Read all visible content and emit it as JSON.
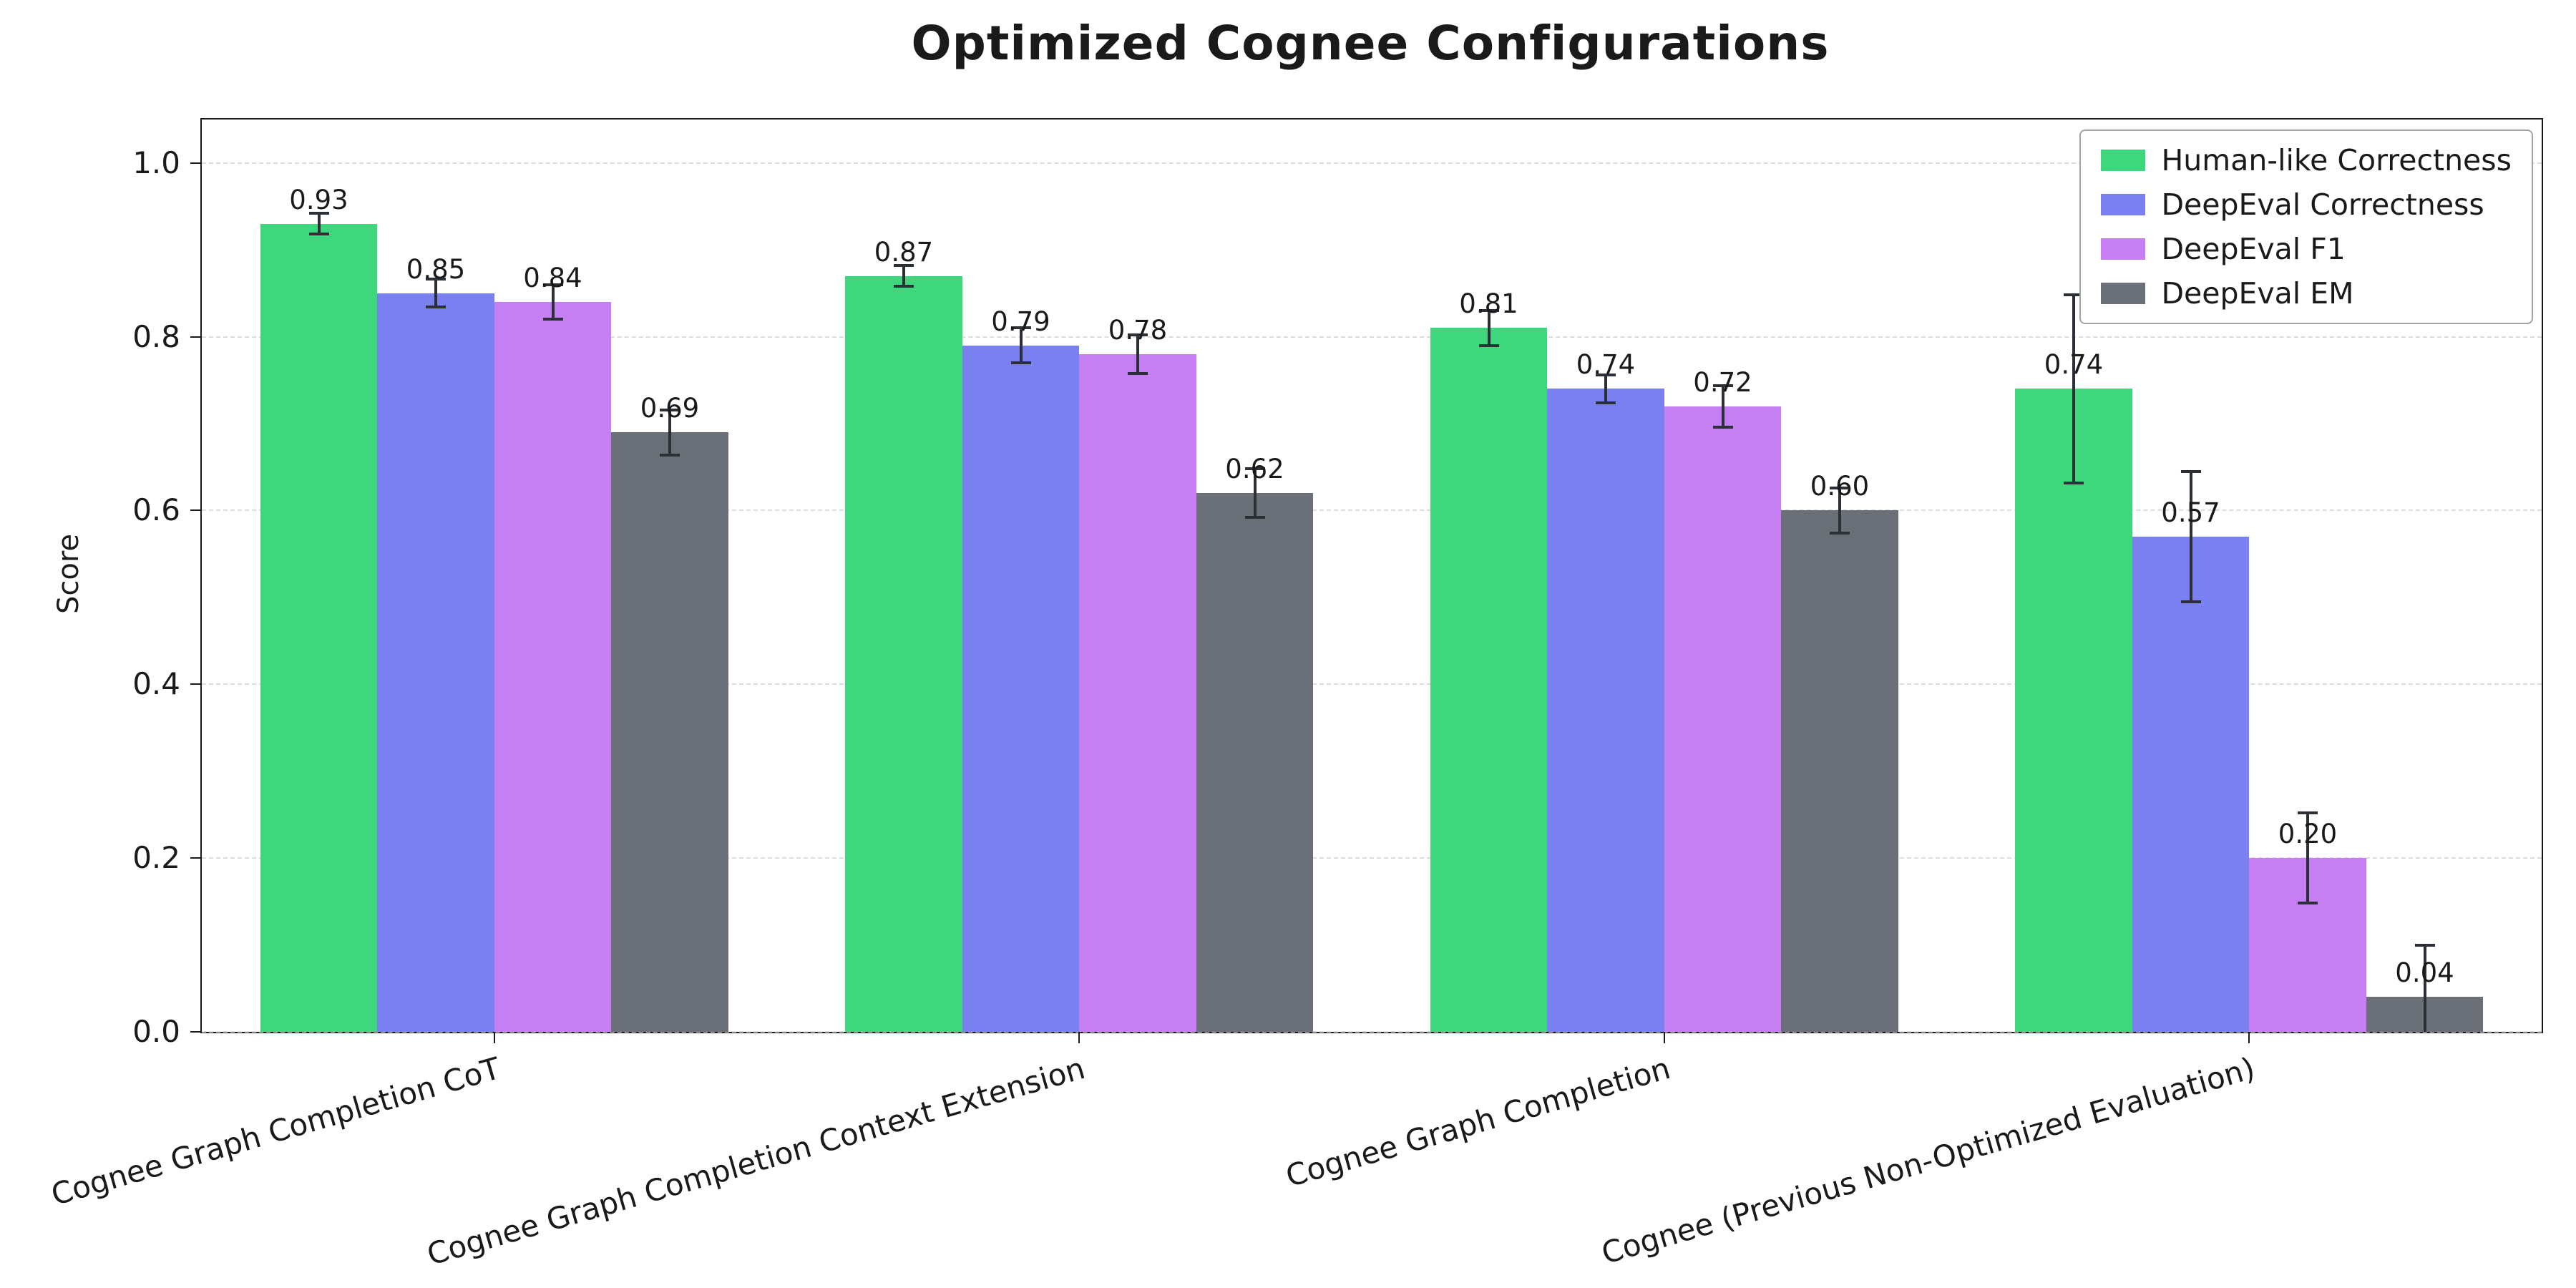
{
  "title": "Optimized Cognee Configurations",
  "chart_data": {
    "type": "bar",
    "title": "Optimized Cognee Configurations",
    "xlabel": "",
    "ylabel": "Score",
    "ylim": [
      0,
      1.05
    ],
    "yticks": [
      0,
      0.2,
      0.4,
      0.6,
      0.8,
      1.0
    ],
    "grid": "horizontal dashed",
    "legend_position": "upper right",
    "bar_value_labels": true,
    "error_bars": true,
    "categories": [
      "Cognee Graph Completion CoT",
      "Cognee Graph Completion Context Extension",
      "Cognee Graph Completion",
      "Cognee (Previous Non-Optimized Evaluation)"
    ],
    "series": [
      {
        "name": "Human-like Correctness",
        "color": "#3fd77d",
        "values": [
          0.93,
          0.87,
          0.81,
          0.74
        ],
        "errors": [
          0.012,
          0.012,
          0.02,
          0.108
        ]
      },
      {
        "name": "DeepEval Correctness",
        "color": "#7b80f0",
        "values": [
          0.85,
          0.79,
          0.74,
          0.57
        ],
        "errors": [
          0.016,
          0.02,
          0.016,
          0.075
        ]
      },
      {
        "name": "DeepEval F1",
        "color": "#c67ff2",
        "values": [
          0.84,
          0.78,
          0.72,
          0.2
        ],
        "errors": [
          0.02,
          0.022,
          0.024,
          0.052
        ]
      },
      {
        "name": "DeepEval EM",
        "color": "#6b6f78",
        "values": [
          0.69,
          0.62,
          0.6,
          0.04
        ],
        "errors": [
          0.026,
          0.028,
          0.026,
          0.06
        ]
      }
    ]
  },
  "axis": {
    "ylabel": "Score",
    "ytick_labels": [
      "0.0",
      "0.2",
      "0.4",
      "0.6",
      "0.8",
      "1.0"
    ]
  },
  "colors": {
    "grid": "#dcdcdc",
    "spine": "#1a1a1a",
    "error_bar": "#2b2f36",
    "legend_border": "#a3a3a3",
    "background": "#ffffff"
  }
}
